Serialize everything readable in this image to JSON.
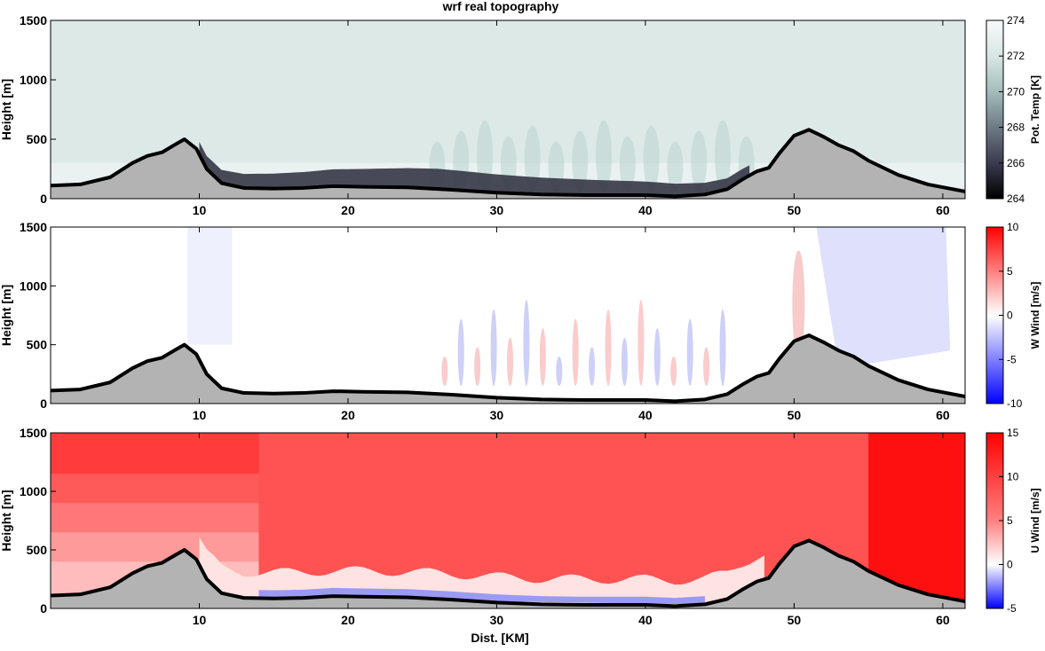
{
  "title": "wrf real topography",
  "xlabel": "Dist. [KM]",
  "chart_data": [
    {
      "type": "heatmap",
      "field": "potential_temperature",
      "ylabel": "Height [m]",
      "xlim": [
        0,
        61.5
      ],
      "ylim": [
        0,
        1500
      ],
      "x_ticks": [
        10,
        20,
        30,
        40,
        50,
        60
      ],
      "y_ticks": [
        0,
        500,
        1000,
        1500
      ],
      "colorbar": {
        "label": "Pot. Temp [K]",
        "range": [
          264,
          274
        ],
        "ticks": [
          264,
          266,
          268,
          270,
          272,
          274
        ],
        "colors": [
          "#000000",
          "#3a3b4f",
          "#6d7a85",
          "#a3bdbb",
          "#d8e6e4",
          "#f7fbfa"
        ]
      },
      "background_color": "#e9f2f1",
      "cold_pool_color": "#2b2c3c"
    },
    {
      "type": "heatmap",
      "field": "vertical_wind",
      "ylabel": "Height [m]",
      "xlim": [
        0,
        61.5
      ],
      "ylim": [
        0,
        1500
      ],
      "x_ticks": [
        10,
        20,
        30,
        40,
        50,
        60
      ],
      "y_ticks": [
        0,
        500,
        1000,
        1500
      ],
      "colorbar": {
        "label": "W Wind [m/s]",
        "range": [
          -10,
          10
        ],
        "ticks": [
          -10,
          -5,
          0,
          5,
          10
        ],
        "colors": [
          "#0000ff",
          "#8080ff",
          "#ffffff",
          "#ff8080",
          "#ff0000"
        ]
      },
      "background_color": "#ffffff",
      "downdraft_color": "#d6d8fb"
    },
    {
      "type": "heatmap",
      "field": "horizontal_wind",
      "ylabel": "Height [m]",
      "xlim": [
        0,
        61.5
      ],
      "ylim": [
        0,
        1500
      ],
      "x_ticks": [
        10,
        20,
        30,
        40,
        50,
        60
      ],
      "y_ticks": [
        0,
        500,
        1000,
        1500
      ],
      "colorbar": {
        "label": "U Wind [m/s]",
        "range": [
          -5,
          15
        ],
        "ticks": [
          -5,
          0,
          5,
          10,
          15
        ],
        "colors": [
          "#0000ff",
          "#ffffff",
          "#ff8080",
          "#ff4040",
          "#ff0000"
        ]
      },
      "background_color": "#ff5252"
    }
  ],
  "topography": {
    "color": "#b3b3b3",
    "line_color": "#000000",
    "x": [
      0,
      2,
      4,
      5.5,
      6.5,
      7.5,
      8.3,
      9,
      9.8,
      10.5,
      11.5,
      13,
      15,
      17,
      19,
      21,
      24,
      27,
      30,
      33,
      36,
      38,
      40,
      42,
      44,
      45.5,
      46.5,
      47.5,
      48.3,
      49,
      50,
      51,
      52,
      53,
      54,
      55,
      57,
      59,
      61.5
    ],
    "height": [
      110,
      120,
      180,
      300,
      360,
      390,
      450,
      500,
      420,
      250,
      130,
      90,
      85,
      90,
      105,
      100,
      95,
      75,
      50,
      35,
      30,
      30,
      30,
      20,
      35,
      80,
      160,
      230,
      260,
      380,
      530,
      580,
      520,
      450,
      400,
      320,
      200,
      120,
      60
    ]
  }
}
